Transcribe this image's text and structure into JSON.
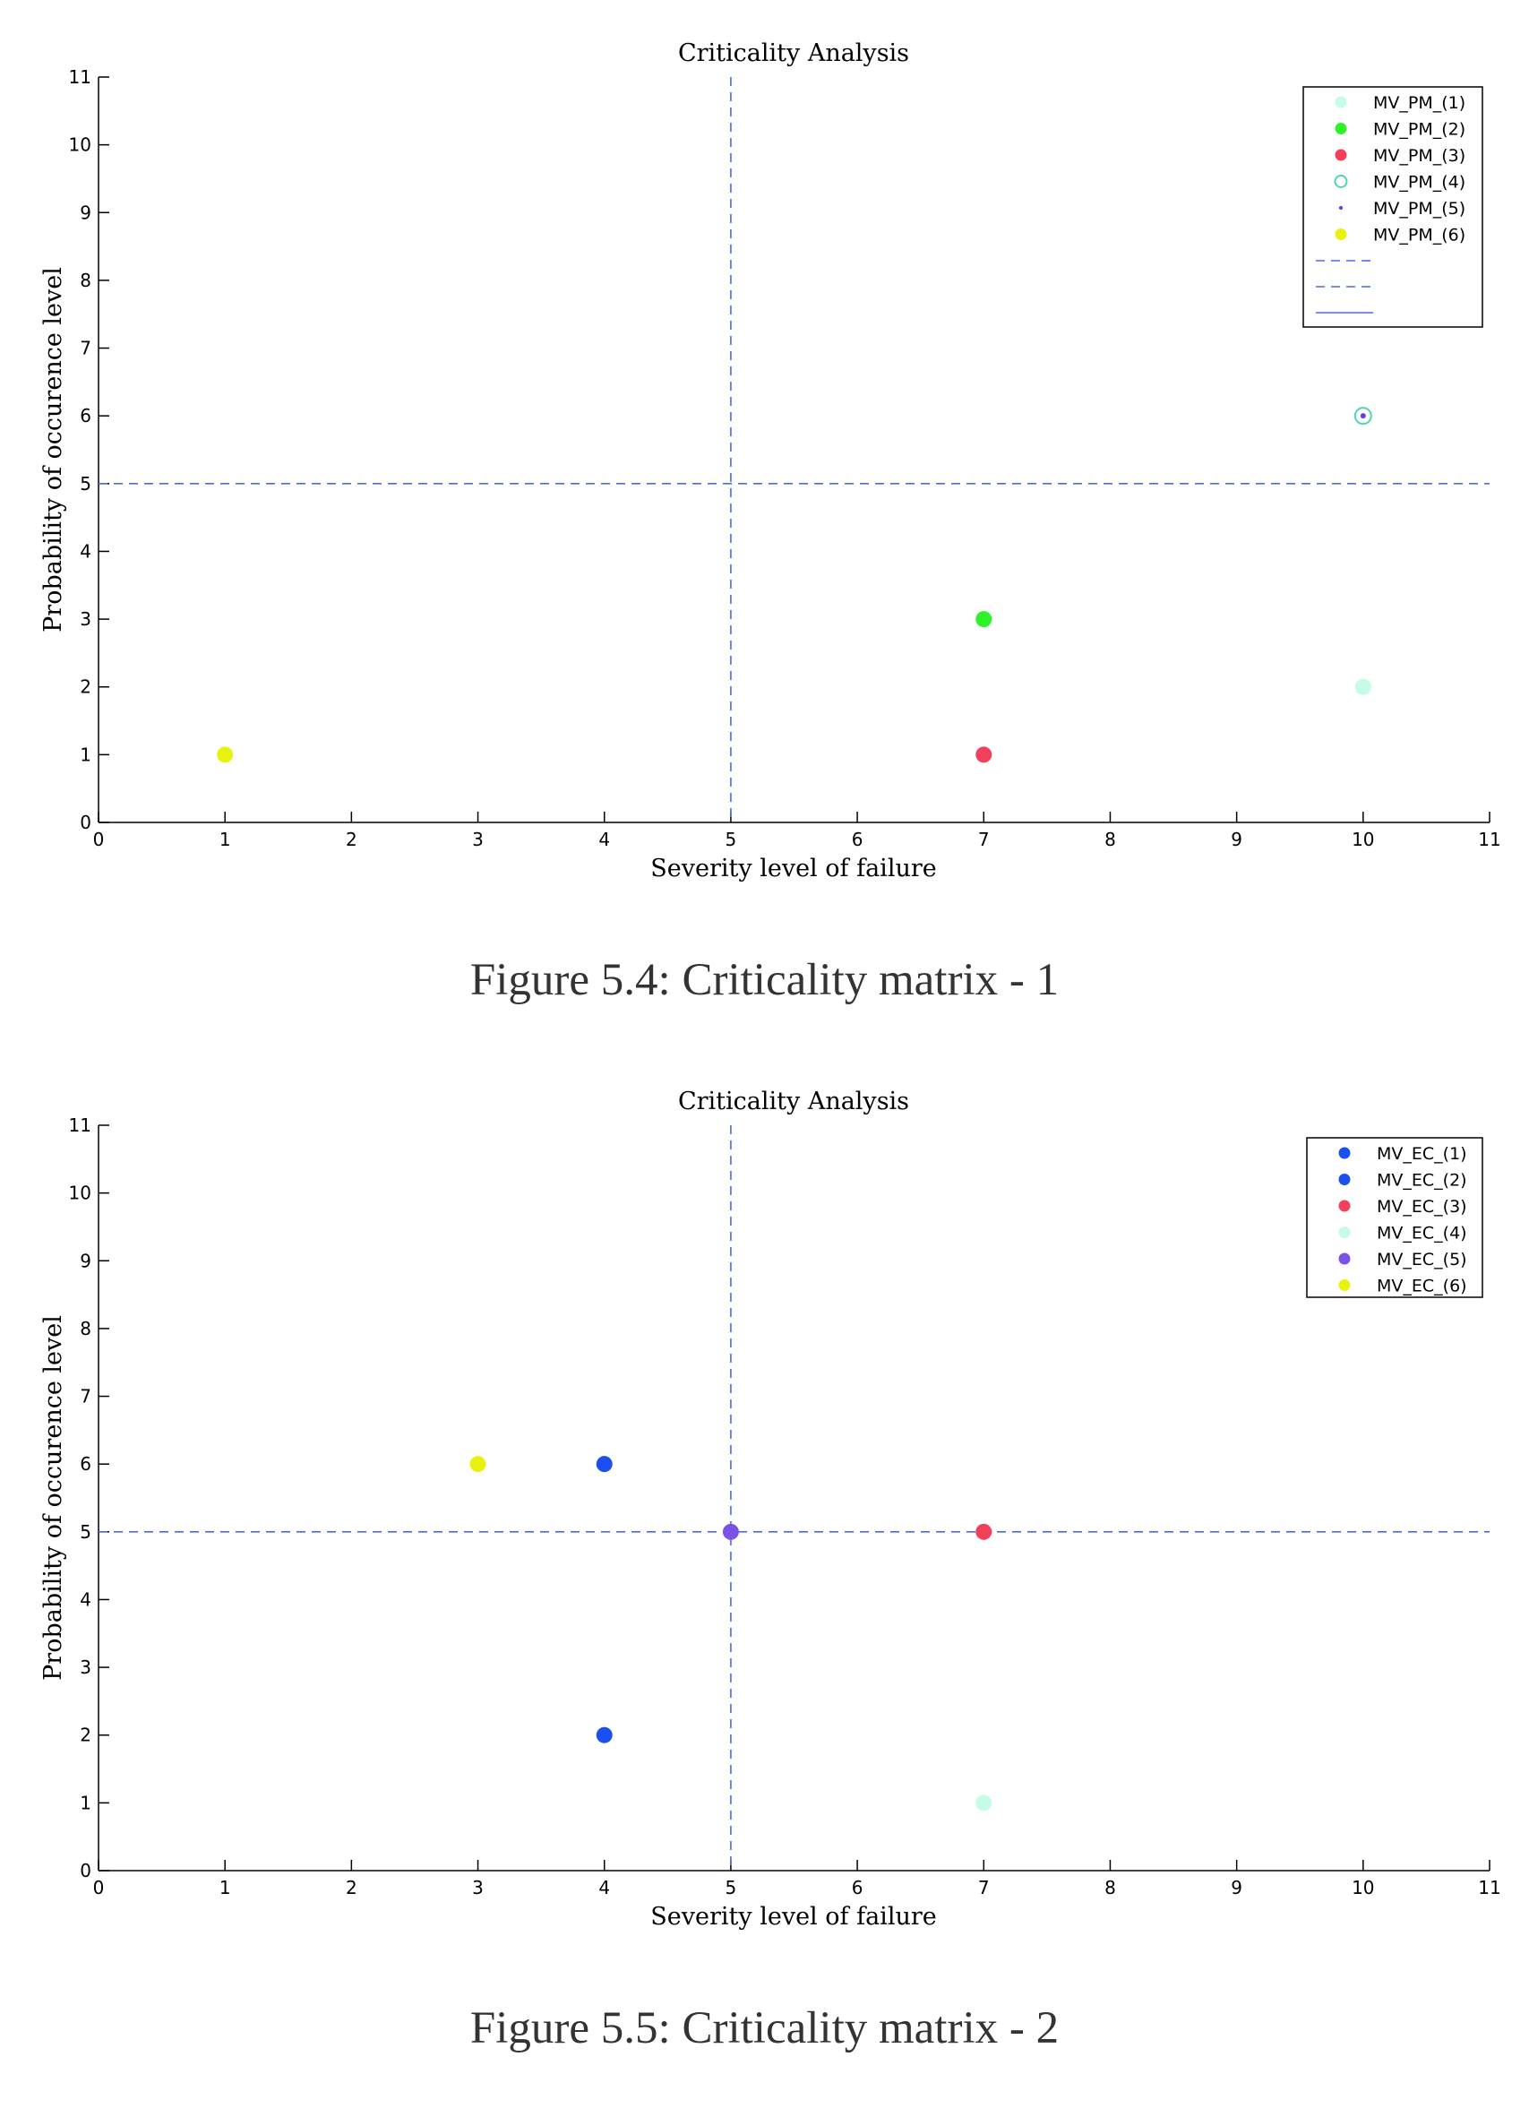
{
  "figures": [
    {
      "caption": "Figure 5.4: Criticality matrix - 1"
    },
    {
      "caption": "Figure 5.5: Criticality matrix - 2"
    }
  ],
  "chart_data": [
    {
      "type": "scatter",
      "title": "Criticality Analysis",
      "xlabel": "Severity level of failure",
      "ylabel": "Probability of occurence level",
      "xlim": [
        0,
        11
      ],
      "ylim": [
        0,
        11
      ],
      "xticks": [
        "0",
        "1",
        "2",
        "3",
        "4",
        "5",
        "6",
        "7",
        "8",
        "9",
        "10",
        "11"
      ],
      "yticks": [
        "0",
        "1",
        "2",
        "3",
        "4",
        "5",
        "6",
        "7",
        "8",
        "9",
        "10",
        "11"
      ],
      "grid": false,
      "legend_position": "top-right",
      "series": [
        {
          "name": "MV_PM_(1)",
          "color": "#c6fbe6",
          "marker": "filled-circle",
          "points": [
            [
              10,
              2
            ]
          ]
        },
        {
          "name": "MV_PM_(2)",
          "color": "#2df226",
          "marker": "filled-circle",
          "points": [
            [
              7,
              3
            ]
          ]
        },
        {
          "name": "MV_PM_(3)",
          "color": "#f2405a",
          "marker": "filled-circle",
          "points": [
            [
              7,
              1
            ]
          ]
        },
        {
          "name": "MV_PM_(4)",
          "color": "#4fd6ae",
          "marker": "open-circle",
          "points": [
            [
              10,
              6
            ]
          ]
        },
        {
          "name": "MV_PM_(5)",
          "color": "#5a45e0",
          "marker": "dot",
          "points": [
            [
              10,
              6
            ]
          ]
        },
        {
          "name": "MV_PM_(6)",
          "color": "#e8f20d",
          "marker": "filled-circle",
          "points": [
            [
              1,
              1
            ]
          ]
        }
      ],
      "reference_lines": [
        {
          "orientation": "vertical",
          "value": 5,
          "style": "dashed",
          "color": "#4a6ae8"
        },
        {
          "orientation": "horizontal",
          "value": 5,
          "style": "dashed",
          "color": "#4a6ae8"
        }
      ],
      "legend_extra_lines": [
        "dashed",
        "dashed",
        "solid"
      ]
    },
    {
      "type": "scatter",
      "title": "Criticality Analysis",
      "xlabel": "Severity level of failure",
      "ylabel": "Probability of occurence level",
      "xlim": [
        0,
        11
      ],
      "ylim": [
        0,
        11
      ],
      "xticks": [
        "0",
        "1",
        "2",
        "3",
        "4",
        "5",
        "6",
        "7",
        "8",
        "9",
        "10",
        "11"
      ],
      "yticks": [
        "0",
        "1",
        "2",
        "3",
        "4",
        "5",
        "6",
        "7",
        "8",
        "9",
        "10",
        "11"
      ],
      "grid": false,
      "legend_position": "top-right",
      "series": [
        {
          "name": "MV_EC_(1)",
          "color": "#1c4ff0",
          "marker": "filled-circle",
          "points": [
            [
              4,
              6
            ]
          ]
        },
        {
          "name": "MV_EC_(2)",
          "color": "#1c4ff0",
          "marker": "filled-circle",
          "points": [
            [
              4,
              2
            ]
          ]
        },
        {
          "name": "MV_EC_(3)",
          "color": "#f2405a",
          "marker": "filled-circle",
          "points": [
            [
              7,
              5
            ]
          ]
        },
        {
          "name": "MV_EC_(4)",
          "color": "#c6fbe6",
          "marker": "filled-circle",
          "points": [
            [
              7,
              1
            ]
          ]
        },
        {
          "name": "MV_EC_(5)",
          "color": "#7a52e6",
          "marker": "filled-circle",
          "points": [
            [
              5,
              5
            ]
          ]
        },
        {
          "name": "MV_EC_(6)",
          "color": "#e8f20d",
          "marker": "filled-circle",
          "points": [
            [
              3,
              6
            ]
          ]
        }
      ],
      "reference_lines": [
        {
          "orientation": "vertical",
          "value": 5,
          "style": "dashed",
          "color": "#4a6ae8"
        },
        {
          "orientation": "horizontal",
          "value": 5,
          "style": "dashed",
          "color": "#4a6ae8"
        }
      ],
      "legend_extra_lines": []
    }
  ]
}
